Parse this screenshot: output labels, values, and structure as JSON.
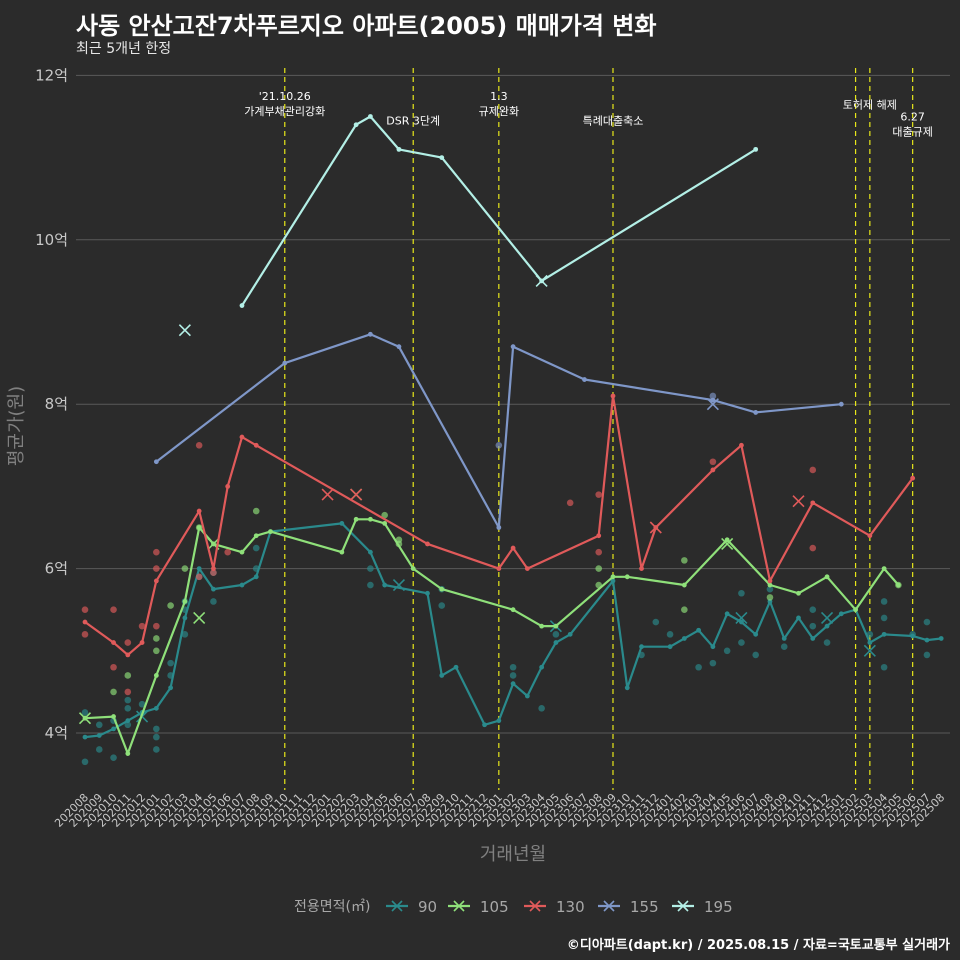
{
  "chart_data": {
    "type": "line",
    "title": "사동 안산고잔7차푸르지오 아파트(2005) 매매가격 변화",
    "subtitle": "최근 5개년 한정",
    "caption": "©디아파트(dapt.kr) / 2025.08.15 / 자료=국토교통부 실거래가",
    "xlabel": "거래년월",
    "ylabel": "평균가(원)",
    "ylim": [
      3.3,
      12.05
    ],
    "y_ticks": [
      {
        "value": 4,
        "label": "4억"
      },
      {
        "value": 6,
        "label": "6억"
      },
      {
        "value": 8,
        "label": "8억"
      },
      {
        "value": 10,
        "label": "10억"
      },
      {
        "value": 12,
        "label": "12억"
      }
    ],
    "x_labels": [
      "202008",
      "202009",
      "202010",
      "202011",
      "202012",
      "202101",
      "202102",
      "202103",
      "202104",
      "202105",
      "202106",
      "202107",
      "202108",
      "202109",
      "202110",
      "202111",
      "202112",
      "202201",
      "202202",
      "202203",
      "202204",
      "202205",
      "202206",
      "202207",
      "202208",
      "202209",
      "202210",
      "202211",
      "202212",
      "202301",
      "202302",
      "202303",
      "202304",
      "202305",
      "202306",
      "202307",
      "202308",
      "202309",
      "202310",
      "202311",
      "202312",
      "202401",
      "202402",
      "202403",
      "202404",
      "202405",
      "202406",
      "202407",
      "202408",
      "202409",
      "202410",
      "202411",
      "202412",
      "202501",
      "202502",
      "202503",
      "202504",
      "202505",
      "202506",
      "202507",
      "202508"
    ],
    "grid": true,
    "legend": {
      "position": "bottom",
      "title": "전용면적(㎡)"
    },
    "annotations": [
      {
        "x": "202110",
        "lines": [
          "'21.10.26",
          "가계부채관리강화"
        ],
        "y": 11.7
      },
      {
        "x": "202207",
        "lines": [
          "DSR 3단계"
        ],
        "y": 11.4
      },
      {
        "x": "202301",
        "lines": [
          "1.3",
          "규제완화"
        ],
        "y": 11.7
      },
      {
        "x": "202309",
        "lines": [
          "특례대출축소"
        ],
        "y": 11.4
      },
      {
        "x": "202502",
        "lines": [
          ""
        ],
        "y": 11.6
      },
      {
        "x": "202503",
        "lines": [
          "토허제 해제"
        ],
        "y": 11.6
      },
      {
        "x": "202506",
        "lines": [
          "6.27",
          "대출규제"
        ],
        "y": 11.45
      }
    ],
    "series": [
      {
        "name": "90",
        "color": "#2a8a8c",
        "line": [
          [
            "202008",
            3.95
          ],
          [
            "202009",
            3.97
          ],
          [
            "202010",
            4.05
          ],
          [
            "202011",
            4.15
          ],
          [
            "202012",
            4.25
          ],
          [
            "202101",
            4.3
          ],
          [
            "202102",
            4.55
          ],
          [
            "202103",
            5.4
          ],
          [
            "202104",
            6.0
          ],
          [
            "202105",
            5.75
          ],
          [
            "202107",
            5.8
          ],
          [
            "202108",
            5.9
          ],
          [
            "202109",
            6.45
          ],
          [
            "202202",
            6.55
          ],
          [
            "202204",
            6.2
          ],
          [
            "202205",
            5.8
          ],
          [
            "202208",
            5.7
          ],
          [
            "202209",
            4.7
          ],
          [
            "202210",
            4.8
          ],
          [
            "202212",
            4.1
          ],
          [
            "202301",
            4.15
          ],
          [
            "202302",
            4.6
          ],
          [
            "202303",
            4.45
          ],
          [
            "202304",
            4.8
          ],
          [
            "202305",
            5.1
          ],
          [
            "202306",
            5.2
          ],
          [
            "202309",
            5.85
          ],
          [
            "202310",
            4.55
          ],
          [
            "202311",
            5.05
          ],
          [
            "202401",
            5.05
          ],
          [
            "202402",
            5.15
          ],
          [
            "202403",
            5.25
          ],
          [
            "202404",
            5.05
          ],
          [
            "202405",
            5.45
          ],
          [
            "202406",
            5.35
          ],
          [
            "202407",
            5.2
          ],
          [
            "202408",
            5.6
          ],
          [
            "202409",
            5.15
          ],
          [
            "202410",
            5.4
          ],
          [
            "202411",
            5.15
          ],
          [
            "202412",
            5.3
          ],
          [
            "202501",
            5.45
          ],
          [
            "202502",
            5.5
          ],
          [
            "202503",
            5.1
          ],
          [
            "202504",
            5.2
          ],
          [
            "202506",
            5.18
          ],
          [
            "202507",
            5.13
          ],
          [
            "202508",
            5.15
          ]
        ],
        "points": [
          [
            "202008",
            3.65
          ],
          [
            "202008",
            4.25
          ],
          [
            "202009",
            3.8
          ],
          [
            "202009",
            4.1
          ],
          [
            "202010",
            4.15
          ],
          [
            "202010",
            3.7
          ],
          [
            "202011",
            4.4
          ],
          [
            "202011",
            4.1
          ],
          [
            "202011",
            4.3
          ],
          [
            "202012",
            4.35
          ],
          [
            "202101",
            4.05
          ],
          [
            "202101",
            3.95
          ],
          [
            "202101",
            3.8
          ],
          [
            "202102",
            4.85
          ],
          [
            "202102",
            4.7
          ],
          [
            "202103",
            5.2
          ],
          [
            "202103",
            5.5
          ],
          [
            "202103",
            5.6
          ],
          [
            "202104",
            5.9
          ],
          [
            "202105",
            5.95
          ],
          [
            "202105",
            5.6
          ],
          [
            "202108",
            6.0
          ],
          [
            "202108",
            6.25
          ],
          [
            "202204",
            5.8
          ],
          [
            "202204",
            6.0
          ],
          [
            "202209",
            5.55
          ],
          [
            "202209",
            5.75
          ],
          [
            "202302",
            4.7
          ],
          [
            "202302",
            4.8
          ],
          [
            "202304",
            4.3
          ],
          [
            "202305",
            5.2
          ],
          [
            "202311",
            4.95
          ],
          [
            "202312",
            5.35
          ],
          [
            "202401",
            5.2
          ],
          [
            "202403",
            4.8
          ],
          [
            "202404",
            4.85
          ],
          [
            "202405",
            5.0
          ],
          [
            "202406",
            5.1
          ],
          [
            "202406",
            5.7
          ],
          [
            "202407",
            4.95
          ],
          [
            "202408",
            5.75
          ],
          [
            "202409",
            5.05
          ],
          [
            "202411",
            5.3
          ],
          [
            "202411",
            5.5
          ],
          [
            "202412",
            5.1
          ],
          [
            "202503",
            5.2
          ],
          [
            "202504",
            5.6
          ],
          [
            "202504",
            4.8
          ],
          [
            "202504",
            5.4
          ],
          [
            "202507",
            4.95
          ],
          [
            "202507",
            5.35
          ],
          [
            "202506",
            5.2
          ]
        ],
        "crosses": [
          [
            "202305",
            5.3
          ],
          [
            "202206",
            5.8
          ],
          [
            "202406",
            5.4
          ],
          [
            "202412",
            5.4
          ],
          [
            "202503",
            5.0
          ],
          [
            "202012",
            4.2
          ]
        ]
      },
      {
        "name": "105",
        "color": "#8fe07a",
        "line": [
          [
            "202008",
            4.18
          ],
          [
            "202010",
            4.2
          ],
          [
            "202011",
            3.75
          ],
          [
            "202101",
            4.7
          ],
          [
            "202103",
            5.6
          ],
          [
            "202104",
            6.5
          ],
          [
            "202105",
            6.3
          ],
          [
            "202107",
            6.2
          ],
          [
            "202108",
            6.4
          ],
          [
            "202109",
            6.45
          ],
          [
            "202202",
            6.2
          ],
          [
            "202203",
            6.6
          ],
          [
            "202204",
            6.6
          ],
          [
            "202205",
            6.55
          ],
          [
            "202207",
            6.0
          ],
          [
            "202209",
            5.75
          ],
          [
            "202302",
            5.5
          ],
          [
            "202304",
            5.3
          ],
          [
            "202305",
            5.3
          ],
          [
            "202309",
            5.9
          ],
          [
            "202310",
            5.9
          ],
          [
            "202402",
            5.8
          ],
          [
            "202405",
            6.35
          ],
          [
            "202408",
            5.8
          ],
          [
            "202410",
            5.7
          ],
          [
            "202412",
            5.9
          ],
          [
            "202502",
            5.5
          ],
          [
            "202504",
            6.0
          ],
          [
            "202505",
            5.8
          ]
        ],
        "points": [
          [
            "202010",
            4.5
          ],
          [
            "202011",
            4.7
          ],
          [
            "202101",
            5.0
          ],
          [
            "202101",
            5.15
          ],
          [
            "202102",
            5.55
          ],
          [
            "202103",
            6.0
          ],
          [
            "202104",
            6.5
          ],
          [
            "202108",
            6.7
          ],
          [
            "202206",
            6.3
          ],
          [
            "202206",
            6.35
          ],
          [
            "202205",
            6.65
          ],
          [
            "202308",
            6.0
          ],
          [
            "202308",
            5.8
          ],
          [
            "202402",
            6.1
          ],
          [
            "202402",
            5.5
          ],
          [
            "202408",
            5.65
          ],
          [
            "202505",
            5.8
          ]
        ],
        "crosses": [
          [
            "202008",
            4.18
          ],
          [
            "202104",
            5.4
          ],
          [
            "202105",
            6.3
          ],
          [
            "202203",
            6.9
          ],
          [
            "202405",
            6.3
          ]
        ]
      },
      {
        "name": "130",
        "color": "#e05a5a",
        "line": [
          [
            "202008",
            5.35
          ],
          [
            "202010",
            5.1
          ],
          [
            "202011",
            4.95
          ],
          [
            "202012",
            5.1
          ],
          [
            "202101",
            5.85
          ],
          [
            "202104",
            6.7
          ],
          [
            "202105",
            6.0
          ],
          [
            "202106",
            7.0
          ],
          [
            "202107",
            7.6
          ],
          [
            "202108",
            7.5
          ],
          [
            "202208",
            6.3
          ],
          [
            "202301",
            6.0
          ],
          [
            "202302",
            6.25
          ],
          [
            "202303",
            6.0
          ],
          [
            "202308",
            6.4
          ],
          [
            "202309",
            8.1
          ],
          [
            "202311",
            6.0
          ],
          [
            "202312",
            6.5
          ],
          [
            "202404",
            7.2
          ],
          [
            "202406",
            7.5
          ],
          [
            "202408",
            5.85
          ],
          [
            "202411",
            6.8
          ],
          [
            "202503",
            6.4
          ],
          [
            "202506",
            7.1
          ]
        ],
        "points": [
          [
            "202008",
            5.5
          ],
          [
            "202008",
            5.2
          ],
          [
            "202010",
            5.5
          ],
          [
            "202010",
            4.8
          ],
          [
            "202011",
            4.5
          ],
          [
            "202011",
            5.1
          ],
          [
            "202012",
            5.3
          ],
          [
            "202101",
            5.3
          ],
          [
            "202101",
            6.2
          ],
          [
            "202101",
            6.0
          ],
          [
            "202104",
            7.5
          ],
          [
            "202104",
            5.9
          ],
          [
            "202105",
            5.95
          ],
          [
            "202106",
            6.2
          ],
          [
            "202308",
            6.9
          ],
          [
            "202308",
            6.2
          ],
          [
            "202404",
            7.3
          ],
          [
            "202411",
            7.2
          ],
          [
            "202411",
            6.25
          ],
          [
            "202306",
            6.8
          ]
        ],
        "crosses": [
          [
            "202201",
            6.9
          ],
          [
            "202203",
            6.9
          ],
          [
            "202312",
            6.5
          ],
          [
            "202410",
            6.82
          ]
        ]
      },
      {
        "name": "155",
        "color": "#7f97c8",
        "line": [
          [
            "202101",
            7.3
          ],
          [
            "202110",
            8.5
          ],
          [
            "202204",
            8.85
          ],
          [
            "202206",
            8.7
          ],
          [
            "202301",
            6.5
          ],
          [
            "202302",
            8.7
          ],
          [
            "202307",
            8.3
          ],
          [
            "202404",
            8.05
          ],
          [
            "202407",
            7.9
          ],
          [
            "202501",
            8.0
          ]
        ],
        "points": [
          [
            "202301",
            7.5
          ],
          [
            "202404",
            8.1
          ]
        ],
        "crosses": [
          [
            "202404",
            8.0
          ]
        ]
      },
      {
        "name": "195",
        "color": "#b3efe6",
        "line": [
          [
            "202107",
            9.2
          ],
          [
            "202203",
            11.4
          ],
          [
            "202204",
            11.5
          ],
          [
            "202206",
            11.1
          ],
          [
            "202209",
            11.0
          ],
          [
            "202304",
            9.5
          ],
          [
            "202407",
            11.1
          ]
        ],
        "points": [],
        "crosses": [
          [
            "202103",
            8.9
          ],
          [
            "202304",
            9.5
          ]
        ]
      }
    ]
  }
}
